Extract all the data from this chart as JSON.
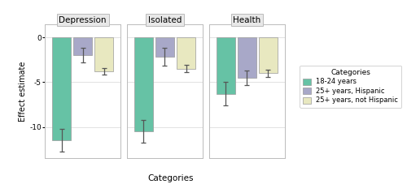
{
  "panels": [
    "Depression",
    "Isolated",
    "Health"
  ],
  "categories": [
    "18-24 years",
    "25+ years, Hispanic",
    "25+ years, not Hispanic"
  ],
  "colors": [
    "#66C2A5",
    "#A8A8C8",
    "#E8E8C0"
  ],
  "bar_values": {
    "Depression": [
      -11.5,
      -2.0,
      -3.8
    ],
    "Isolated": [
      -10.5,
      -2.2,
      -3.5
    ],
    "Health": [
      -6.3,
      -4.5,
      -4.0
    ]
  },
  "error_lower": {
    "Depression": [
      1.3,
      0.8,
      0.4
    ],
    "Isolated": [
      1.3,
      1.0,
      0.4
    ],
    "Health": [
      1.3,
      0.8,
      0.4
    ]
  },
  "error_upper": {
    "Depression": [
      1.3,
      0.8,
      0.4
    ],
    "Isolated": [
      1.3,
      1.0,
      0.4
    ],
    "Health": [
      1.3,
      0.8,
      0.4
    ]
  },
  "ylim": [
    -13.5,
    1.5
  ],
  "yticks": [
    0,
    -5,
    -10
  ],
  "ytick_labels": [
    "0",
    "-5",
    "-10"
  ],
  "ylabel": "Effect estimate",
  "xlabel": "Categories",
  "legend_title": "Categories",
  "background_color": "#FFFFFF",
  "panel_header_color": "#E8E8E8",
  "panel_bg_color": "#FFFFFF",
  "grid_color": "#DDDDDD",
  "bar_width": 0.28,
  "border_color": "#BBBBBB"
}
